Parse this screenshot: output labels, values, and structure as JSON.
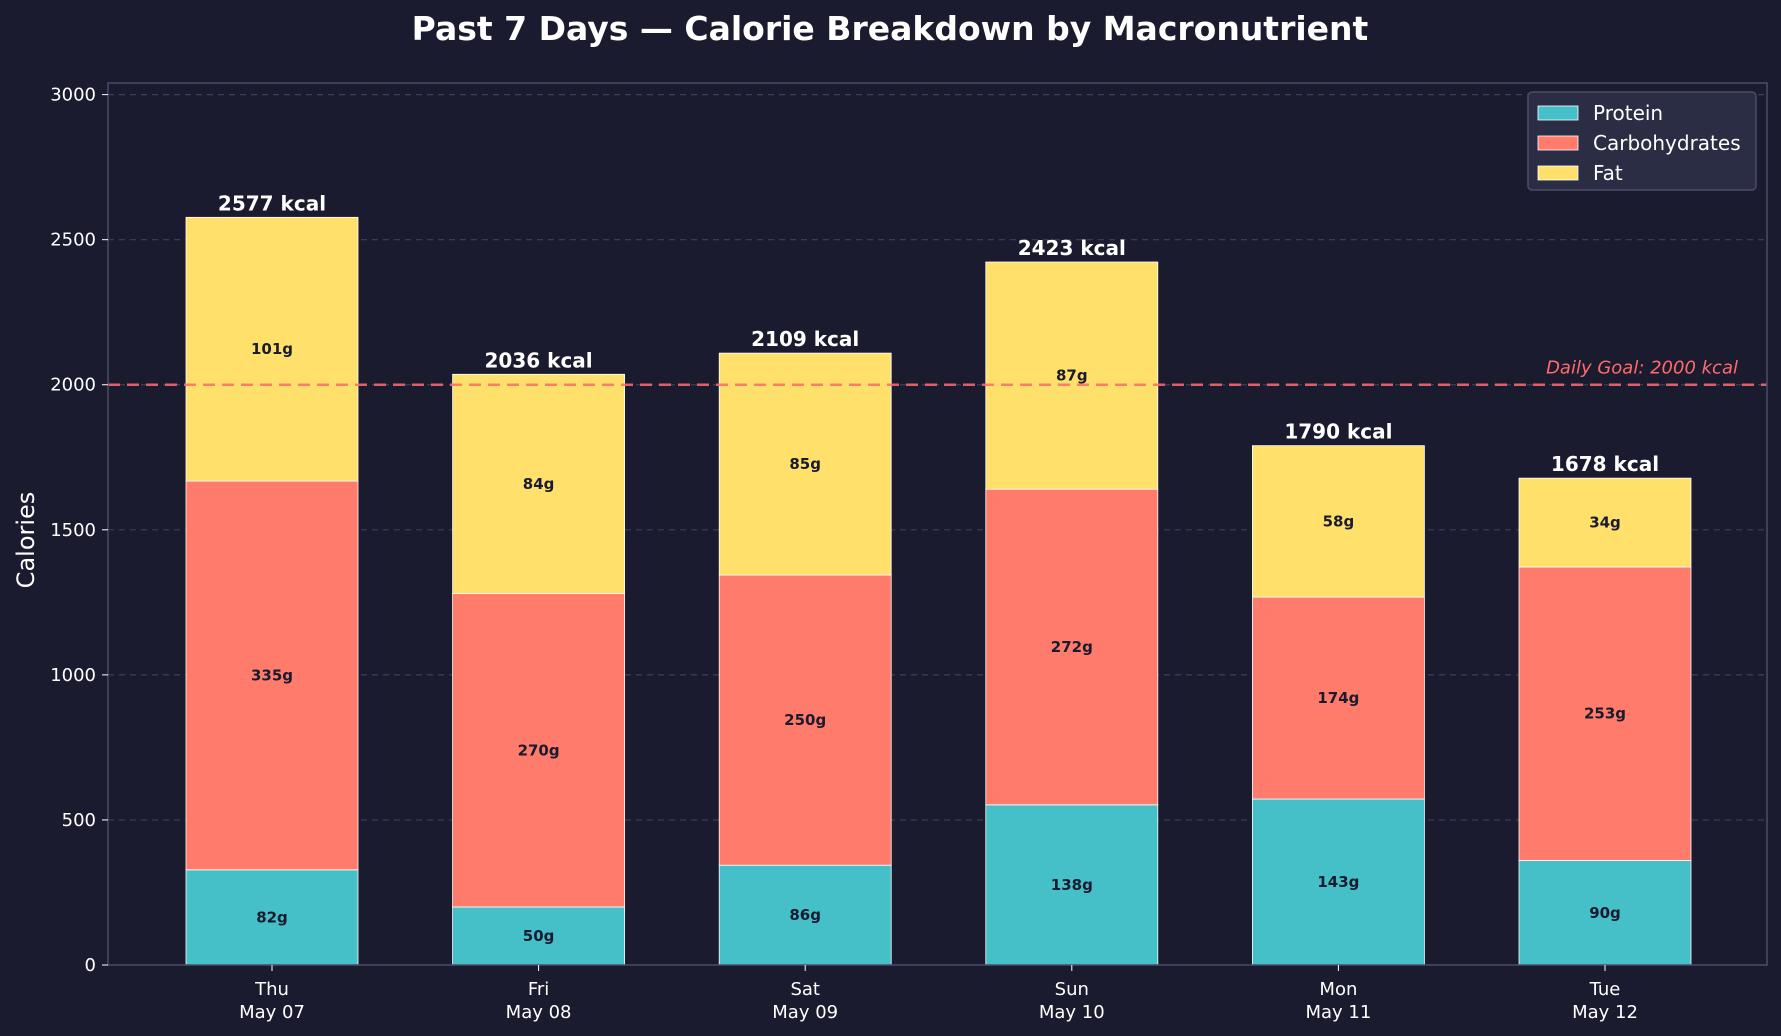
{
  "chart_data": {
    "type": "bar",
    "stacked": true,
    "title": "Past 7 Days — Calorie Breakdown by Macronutrient",
    "ylabel": "Calories",
    "xlabel": "",
    "ylim": [
      0,
      3040
    ],
    "yticks": [
      0,
      500,
      1000,
      1500,
      2000,
      2500,
      3000
    ],
    "grid": true,
    "legend_position": "top-right",
    "categories": [
      {
        "day": "Thu",
        "date": "May 07"
      },
      {
        "day": "Fri",
        "date": "May 08"
      },
      {
        "day": "Sat",
        "date": "May 09"
      },
      {
        "day": "Sun",
        "date": "May 10"
      },
      {
        "day": "Mon",
        "date": "May 11"
      },
      {
        "day": "Tue",
        "date": "May 12"
      }
    ],
    "series": [
      {
        "name": "Protein",
        "color": "#45c0c8",
        "values": [
          328,
          200,
          344,
          552,
          572,
          360
        ],
        "labels": [
          "82g",
          "50g",
          "86g",
          "138g",
          "143g",
          "90g"
        ]
      },
      {
        "name": "Carbohydrates",
        "color": "#ff7b6b",
        "values": [
          1340,
          1080,
          1000,
          1088,
          696,
          1012
        ],
        "labels": [
          "335g",
          "270g",
          "250g",
          "272g",
          "174g",
          "253g"
        ]
      },
      {
        "name": "Fat",
        "color": "#ffe06b",
        "values": [
          909,
          756,
          765,
          783,
          522,
          306
        ],
        "labels": [
          "101g",
          "84g",
          "85g",
          "87g",
          "58g",
          "34g"
        ]
      }
    ],
    "totals": [
      "2577 kcal",
      "2036 kcal",
      "2109 kcal",
      "2423 kcal",
      "1790 kcal",
      "1678 kcal"
    ],
    "total_values": [
      2577,
      2036,
      2109,
      2423,
      1790,
      1678
    ],
    "goal": {
      "value": 2000,
      "label": "Daily Goal: 2000 kcal",
      "color": "#ff6b6b"
    }
  },
  "colors": {
    "background": "#1a1b2e",
    "axes": "#4a4c6a",
    "grid": "#3d3f5c",
    "legend_bg": "#2b2d45"
  }
}
